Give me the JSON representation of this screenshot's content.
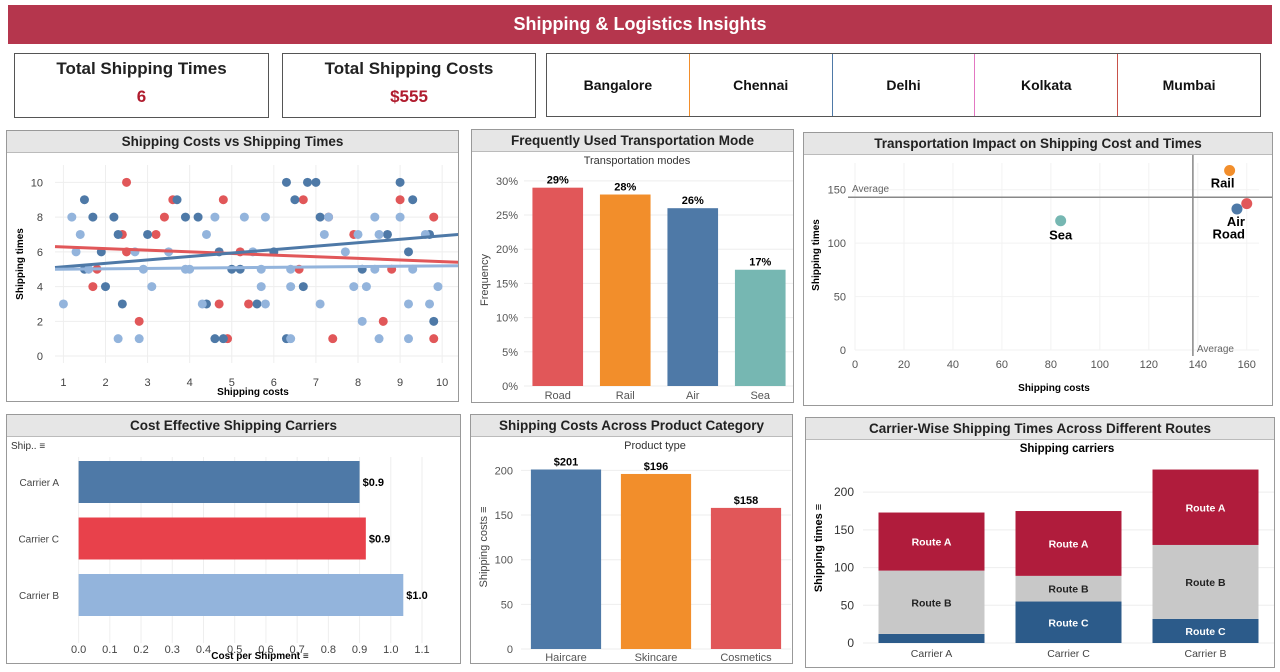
{
  "header": {
    "title": "Shipping & Logistics Insights"
  },
  "kpis": [
    {
      "label": "Total Shipping Times",
      "value": "6"
    },
    {
      "label": "Total Shipping Costs",
      "value": "$555"
    }
  ],
  "location_filter": {
    "cities": [
      "Bangalore",
      "Chennai",
      "Delhi",
      "Kolkata",
      "Mumbai"
    ],
    "divider_colors": [
      "#f28e2b",
      "#4e79a7",
      "#e377c2",
      "#c8524a"
    ]
  },
  "colors": {
    "red": "#e15759",
    "orange": "#f28e2b",
    "blue": "#4e79a7",
    "teal": "#76b7b2",
    "lightblue": "#93b4dc",
    "darkred": "#b01c3c",
    "grey": "#c8c8c8",
    "navy": "#2c5b8a"
  },
  "panels": {
    "scatter": "Shipping Costs vs Shipping Times",
    "modes": "Frequently Used Transportation Mode",
    "impact": "Transportation Impact on Shipping Cost and Times",
    "carriers": "Cost Effective Shipping Carriers",
    "category": "Shipping Costs Across Product Category",
    "routes": "Carrier-Wise Shipping Times Across Different Routes"
  },
  "chart_data": [
    {
      "id": "scatter",
      "type": "scatter",
      "xlabel": "Shipping costs",
      "ylabel": "Shipping times",
      "xlim": [
        0.8,
        10.4
      ],
      "ylim": [
        -0.4,
        11
      ],
      "xticks": [
        1,
        2,
        3,
        4,
        5,
        6,
        7,
        8,
        9,
        10
      ],
      "yticks": [
        0,
        2,
        4,
        6,
        8,
        10
      ],
      "series": [
        {
          "color": "#e15759",
          "points": [
            [
              2.5,
              10
            ],
            [
              3.6,
              9
            ],
            [
              4.8,
              9
            ],
            [
              6.7,
              9
            ],
            [
              9.0,
              9
            ],
            [
              3.4,
              8
            ],
            [
              7.3,
              8
            ],
            [
              9.8,
              8
            ],
            [
              2.4,
              7
            ],
            [
              3.2,
              7
            ],
            [
              7.9,
              7
            ],
            [
              1.8,
              5
            ],
            [
              2.5,
              6
            ],
            [
              6.6,
              5
            ],
            [
              8.8,
              5
            ],
            [
              5.2,
              6
            ],
            [
              2.8,
              2
            ],
            [
              7.4,
              1
            ],
            [
              8.6,
              2
            ],
            [
              9.8,
              1
            ],
            [
              5.4,
              3
            ],
            [
              1.7,
              4
            ],
            [
              4.9,
              1
            ],
            [
              4.7,
              3
            ]
          ]
        },
        {
          "color": "#4e79a7",
          "points": [
            [
              1.5,
              9
            ],
            [
              3.7,
              9
            ],
            [
              6.3,
              10
            ],
            [
              6.5,
              9
            ],
            [
              6.8,
              10
            ],
            [
              7.0,
              10
            ],
            [
              9.0,
              10
            ],
            [
              9.3,
              9
            ],
            [
              1.7,
              8
            ],
            [
              2.2,
              8
            ],
            [
              3.9,
              8
            ],
            [
              4.2,
              8
            ],
            [
              7.1,
              8
            ],
            [
              2.3,
              7
            ],
            [
              3.0,
              7
            ],
            [
              8.7,
              7
            ],
            [
              9.7,
              7
            ],
            [
              1.9,
              6
            ],
            [
              4.7,
              6
            ],
            [
              6.0,
              6
            ],
            [
              9.2,
              6
            ],
            [
              1.5,
              5
            ],
            [
              5.0,
              5
            ],
            [
              5.2,
              5
            ],
            [
              8.1,
              5
            ],
            [
              2.0,
              4
            ],
            [
              6.7,
              4
            ],
            [
              2.4,
              3
            ],
            [
              4.4,
              3
            ],
            [
              5.6,
              3
            ],
            [
              9.8,
              2
            ],
            [
              4.6,
              1
            ],
            [
              4.8,
              1
            ],
            [
              6.3,
              1
            ]
          ]
        },
        {
          "color": "#93b4dc",
          "points": [
            [
              1.2,
              8
            ],
            [
              4.6,
              8
            ],
            [
              5.3,
              8
            ],
            [
              5.8,
              8
            ],
            [
              7.3,
              8
            ],
            [
              8.4,
              8
            ],
            [
              9.0,
              8
            ],
            [
              8.5,
              7
            ],
            [
              1.4,
              7
            ],
            [
              4.4,
              7
            ],
            [
              7.2,
              7
            ],
            [
              8.0,
              7
            ],
            [
              9.6,
              7
            ],
            [
              2.7,
              6
            ],
            [
              3.5,
              6
            ],
            [
              5.5,
              6
            ],
            [
              7.7,
              6
            ],
            [
              1.3,
              6
            ],
            [
              3.9,
              5
            ],
            [
              1.6,
              5
            ],
            [
              2.9,
              5
            ],
            [
              6.4,
              5
            ],
            [
              4.0,
              5
            ],
            [
              5.7,
              5
            ],
            [
              8.4,
              5
            ],
            [
              9.3,
              5
            ],
            [
              3.1,
              4
            ],
            [
              5.7,
              4
            ],
            [
              6.4,
              4
            ],
            [
              8.2,
              4
            ],
            [
              9.9,
              4
            ],
            [
              1.0,
              3
            ],
            [
              4.3,
              3
            ],
            [
              5.8,
              3
            ],
            [
              9.2,
              3
            ],
            [
              9.7,
              3
            ],
            [
              7.1,
              3
            ],
            [
              2.8,
              1
            ],
            [
              6.4,
              1
            ],
            [
              8.5,
              1
            ],
            [
              9.2,
              1
            ],
            [
              2.3,
              1
            ],
            [
              8.1,
              2
            ],
            [
              7.9,
              4
            ]
          ]
        }
      ],
      "trends": [
        {
          "color": "#e15759",
          "from": [
            0.8,
            6.3
          ],
          "to": [
            10.4,
            5.4
          ]
        },
        {
          "color": "#4e79a7",
          "from": [
            0.8,
            5.1
          ],
          "to": [
            10.4,
            7.0
          ]
        },
        {
          "color": "#93b4dc",
          "from": [
            0.8,
            5.0
          ],
          "to": [
            10.4,
            5.2
          ]
        }
      ]
    },
    {
      "id": "modes",
      "type": "bar",
      "title": "Transportation modes",
      "ylabel": "Frequency",
      "categories": [
        "Road",
        "Rail",
        "Air",
        "Sea"
      ],
      "values": [
        29,
        28,
        26,
        17
      ],
      "labels": [
        "29%",
        "28%",
        "26%",
        "17%"
      ],
      "colors": [
        "#e15759",
        "#f28e2b",
        "#4e79a7",
        "#76b7b2"
      ],
      "ylim": [
        0,
        31
      ],
      "yticks": [
        "0%",
        "5%",
        "10%",
        "15%",
        "20%",
        "25%",
        "30%"
      ]
    },
    {
      "id": "impact",
      "type": "scatter",
      "xlabel": "Shipping costs",
      "ylabel": "Shipping times",
      "xlim": [
        0,
        165
      ],
      "ylim": [
        0,
        175
      ],
      "xticks": [
        0,
        20,
        40,
        60,
        80,
        100,
        120,
        140,
        160
      ],
      "yticks": [
        0,
        50,
        100,
        150
      ],
      "reference_lines": {
        "label": "Average",
        "x": 138,
        "y": 143
      },
      "points": [
        {
          "label": "Rail",
          "x": 153,
          "y": 168,
          "color": "#f28e2b"
        },
        {
          "label": "Road",
          "x": 160,
          "y": 137,
          "color": "#e15759"
        },
        {
          "label": "Air",
          "x": 156,
          "y": 132,
          "color": "#4e79a7"
        },
        {
          "label": "Sea",
          "x": 84,
          "y": 121,
          "color": "#76b7b2"
        }
      ]
    },
    {
      "id": "carriers",
      "type": "bar",
      "orientation": "horizontal",
      "header_label": "Ship..",
      "xlabel": "Cost per Shipment",
      "categories": [
        "Carrier A",
        "Carrier C",
        "Carrier B"
      ],
      "values": [
        0.9,
        0.92,
        1.04
      ],
      "labels": [
        "$0.9",
        "$0.9",
        "$1.0"
      ],
      "colors": [
        "#4e79a7",
        "#e8414b",
        "#93b4dc"
      ],
      "xlim": [
        -0.05,
        1.18
      ],
      "xticks": [
        "0.0",
        "0.1",
        "0.2",
        "0.3",
        "0.4",
        "0.5",
        "0.6",
        "0.7",
        "0.8",
        "0.9",
        "1.0",
        "1.1"
      ]
    },
    {
      "id": "category",
      "type": "bar",
      "title": "Product type",
      "ylabel": "Shipping costs",
      "categories": [
        "Haircare",
        "Skincare",
        "Cosmetics"
      ],
      "values": [
        201,
        196,
        158
      ],
      "labels": [
        "$201",
        "$196",
        "$158"
      ],
      "colors": [
        "#4e79a7",
        "#f28e2b",
        "#e15759"
      ],
      "ylim": [
        0,
        215
      ],
      "yticks": [
        0,
        50,
        100,
        150,
        200
      ]
    },
    {
      "id": "routes",
      "type": "bar",
      "stacked": true,
      "title": "Shipping carriers",
      "ylabel": "Shipping times",
      "categories": [
        "Carrier A",
        "Carrier C",
        "Carrier B"
      ],
      "ylim": [
        0,
        240
      ],
      "yticks": [
        0,
        50,
        100,
        150,
        200
      ],
      "series": [
        {
          "name": "Route C",
          "color": "#2c5b8a",
          "values": [
            12,
            55,
            32
          ],
          "labels": [
            "",
            "Route C",
            "Route C"
          ]
        },
        {
          "name": "Route B",
          "color": "#c8c8c8",
          "values": [
            84,
            34,
            98
          ],
          "labels": [
            "Route B",
            "Route B",
            "Route B"
          ]
        },
        {
          "name": "Route A",
          "color": "#b01c3c",
          "values": [
            77,
            86,
            100
          ],
          "labels": [
            "Route A",
            "Route A",
            "Route A"
          ]
        }
      ]
    }
  ]
}
